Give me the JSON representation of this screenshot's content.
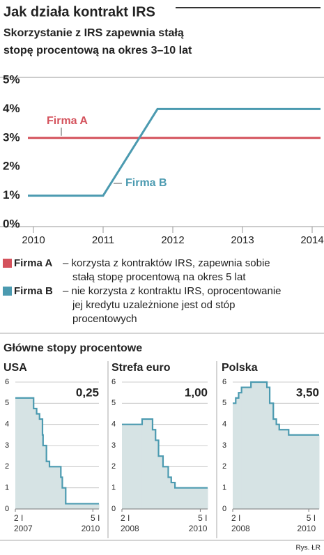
{
  "header": {
    "title": "Jak działa kontrakt IRS",
    "subtitle": [
      "Skorzystanie z IRS zapewnia stałą",
      "stopę procentową na okres 3–10 lat"
    ]
  },
  "section_title": "Główne stopy procentowe",
  "credit": "Rys. ŁR",
  "chart_data": [
    {
      "type": "line",
      "xlim": [
        2009.92,
        2014.12
      ],
      "xticks": [
        2010,
        2011,
        2012,
        2013,
        2014
      ],
      "ylim": [
        0,
        5
      ],
      "yticks": [
        {
          "value": 0,
          "label": "0%"
        },
        {
          "value": 1,
          "label": "1%"
        },
        {
          "value": 2,
          "label": "2%"
        },
        {
          "value": 3,
          "label": "3%"
        },
        {
          "value": 4,
          "label": "4%"
        },
        {
          "value": 5,
          "label": "5%"
        }
      ],
      "grid": false,
      "series": [
        {
          "name": "Firma A",
          "color": "#d4525c",
          "x": [
            2009.92,
            2014.12
          ],
          "values": [
            3,
            3
          ],
          "description": [
            "– korzysta z kontraktów IRS, zapewnia sobie",
            "stałą stopę procentową na okres 5 lat"
          ]
        },
        {
          "name": "Firma B",
          "color": "#4b9ab0",
          "x": [
            2009.92,
            2011,
            2011.78,
            2014.12
          ],
          "values": [
            1,
            1,
            4,
            4
          ],
          "description": [
            "– nie korzysta z kontraktu IRS, oprocentowanie",
            "jej kredytu uzależnione jest od stóp",
            "procentowych"
          ]
        }
      ]
    },
    {
      "type": "step_area",
      "title": "USA",
      "color": "#4b9ab0",
      "area_color": "#d6e3e4",
      "xlim": [
        "2007-01-02",
        "2010-04-01"
      ],
      "xticks": [
        {
          "value": "2007-01-02",
          "label": "2 I 2007"
        },
        {
          "value": "2010-01-05",
          "label": "5 I 2010"
        }
      ],
      "ylim": [
        0,
        6
      ],
      "yticks": [
        0,
        1,
        2,
        3,
        4,
        5,
        6
      ],
      "grid": true,
      "x": [
        "2007-01-02",
        "2007-09-18",
        "2007-10-31",
        "2007-12-11",
        "2008-01-22",
        "2008-01-30",
        "2008-03-18",
        "2008-04-30",
        "2008-10-08",
        "2008-10-29",
        "2008-12-16"
      ],
      "values": [
        5.25,
        4.75,
        4.5,
        4.25,
        3.5,
        3.0,
        2.25,
        2.0,
        1.5,
        1.0,
        0.25
      ],
      "value_labels": [
        null,
        null,
        null,
        null,
        null,
        null,
        null,
        null,
        null,
        null,
        "0,25"
      ]
    },
    {
      "type": "step_area",
      "title": "Strefa euro",
      "color": "#4b9ab0",
      "area_color": "#d6e3e4",
      "xlim": [
        "2008-01-02",
        "2010-03-15"
      ],
      "xticks": [
        {
          "value": "2008-01-02",
          "label": "2 I 2008"
        },
        {
          "value": "2010-01-05",
          "label": "5 I 2010"
        }
      ],
      "ylim": [
        0,
        6
      ],
      "yticks": [
        0,
        1,
        2,
        3,
        4,
        5,
        6
      ],
      "grid": true,
      "x": [
        "2008-01-02",
        "2008-07-09",
        "2008-10-15",
        "2008-11-12",
        "2008-12-10",
        "2009-01-21",
        "2009-03-11",
        "2009-04-08",
        "2009-05-13"
      ],
      "values": [
        4.0,
        4.25,
        3.75,
        3.25,
        2.5,
        2.0,
        1.5,
        1.25,
        1.0
      ],
      "value_labels": [
        null,
        null,
        null,
        null,
        null,
        null,
        null,
        null,
        "1,00"
      ]
    },
    {
      "type": "step_area",
      "title": "Polska",
      "color": "#4b9ab0",
      "area_color": "#d6e3e4",
      "xlim": [
        "2008-01-02",
        "2010-04-15"
      ],
      "xticks": [
        {
          "value": "2008-01-02",
          "label": "2 I 2008"
        },
        {
          "value": "2010-01-05",
          "label": "5 I 2010"
        }
      ],
      "ylim": [
        0,
        6
      ],
      "yticks": [
        0,
        1,
        2,
        3,
        4,
        5,
        6
      ],
      "grid": true,
      "x": [
        "2008-01-02",
        "2008-01-31",
        "2008-02-28",
        "2008-03-27",
        "2008-06-26",
        "2008-11-27",
        "2008-12-24",
        "2009-01-28",
        "2009-02-26",
        "2009-03-26",
        "2009-06-25"
      ],
      "values": [
        5.0,
        5.25,
        5.5,
        5.75,
        6.0,
        5.75,
        5.0,
        4.25,
        4.0,
        3.75,
        3.5
      ],
      "value_labels": [
        null,
        null,
        null,
        null,
        null,
        null,
        null,
        null,
        null,
        null,
        "3,50"
      ]
    }
  ]
}
